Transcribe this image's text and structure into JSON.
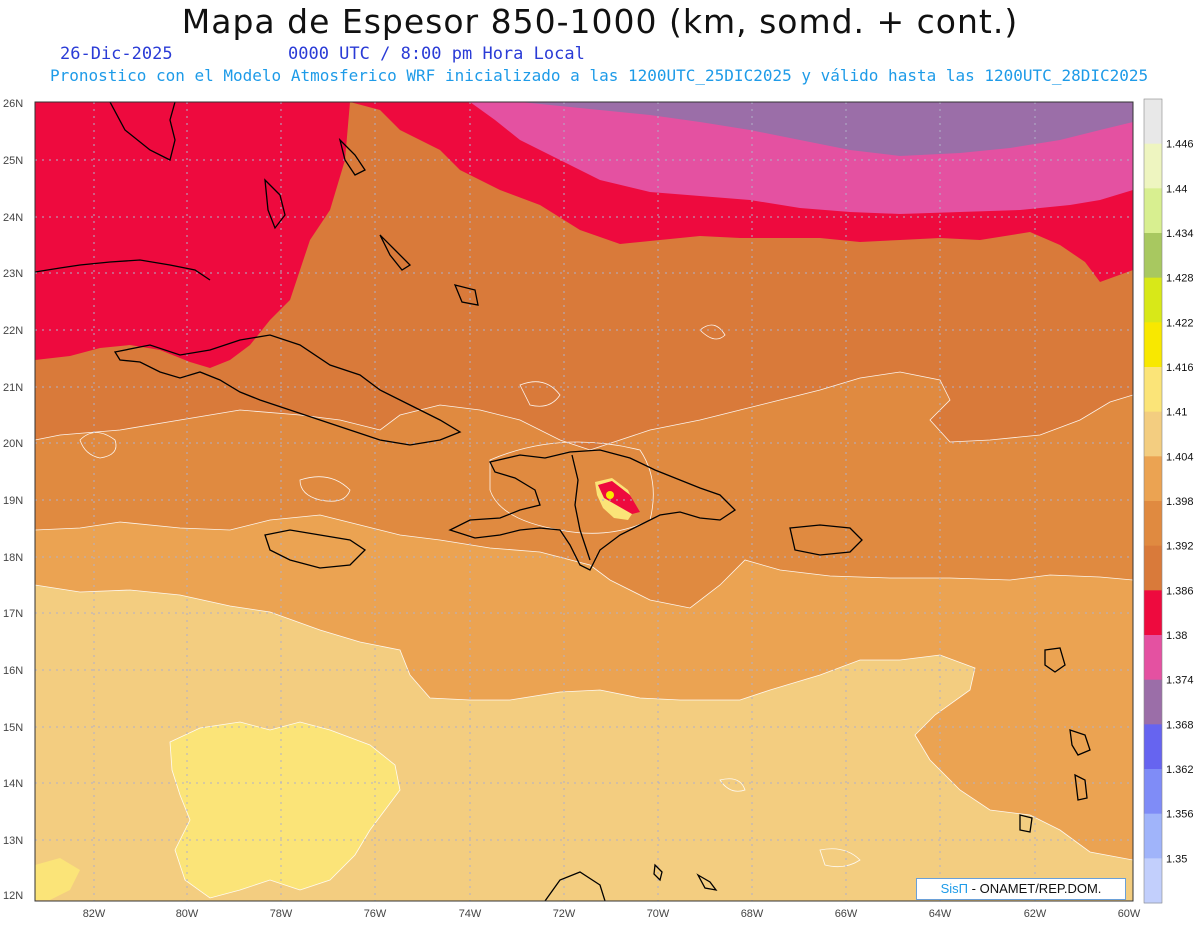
{
  "header": {
    "title": "Mapa de Espesor 850-1000 (km, somd. + cont.)",
    "date": "26-Dic-2025",
    "time": "0000 UTC / 8:00 pm Hora Local",
    "info": "Pronostico con el Modelo Atmosferico WRF inicializado a las 1200UTC_25DIC2025 y válido hasta las  1200UTC_28DIC2025"
  },
  "axes": {
    "lat_labels": [
      "26N",
      "25N",
      "24N",
      "23N",
      "22N",
      "21N",
      "20N",
      "19N",
      "18N",
      "17N",
      "16N",
      "15N",
      "14N",
      "13N",
      "12N"
    ],
    "lon_labels": [
      "82W",
      "80W",
      "78W",
      "76W",
      "74W",
      "72W",
      "70W",
      "68W",
      "66W",
      "64W",
      "62W",
      "60W"
    ]
  },
  "legend": {
    "levels": [
      "1.446",
      "1.44",
      "1.434",
      "1.428",
      "1.422",
      "1.416",
      "1.41",
      "1.404",
      "1.398",
      "1.392",
      "1.386",
      "1.38",
      "1.374",
      "1.368",
      "1.362",
      "1.356",
      "1.35"
    ],
    "colors": [
      "#e8e8e8",
      "#eef5c0",
      "#d8ef90",
      "#a8c860",
      "#d8e818",
      "#f8e800",
      "#fbe478",
      "#f3cd80",
      "#eba352",
      "#e08a40",
      "#d97a3a",
      "#ee0a3e",
      "#e451a1",
      "#9b6ea8",
      "#6664f0",
      "#7f8cf7",
      "#a0b4fa",
      "#c2cffc"
    ]
  },
  "credit": {
    "brand": "SisΠ",
    "text": "- ONAMET/REP.DOM."
  }
}
